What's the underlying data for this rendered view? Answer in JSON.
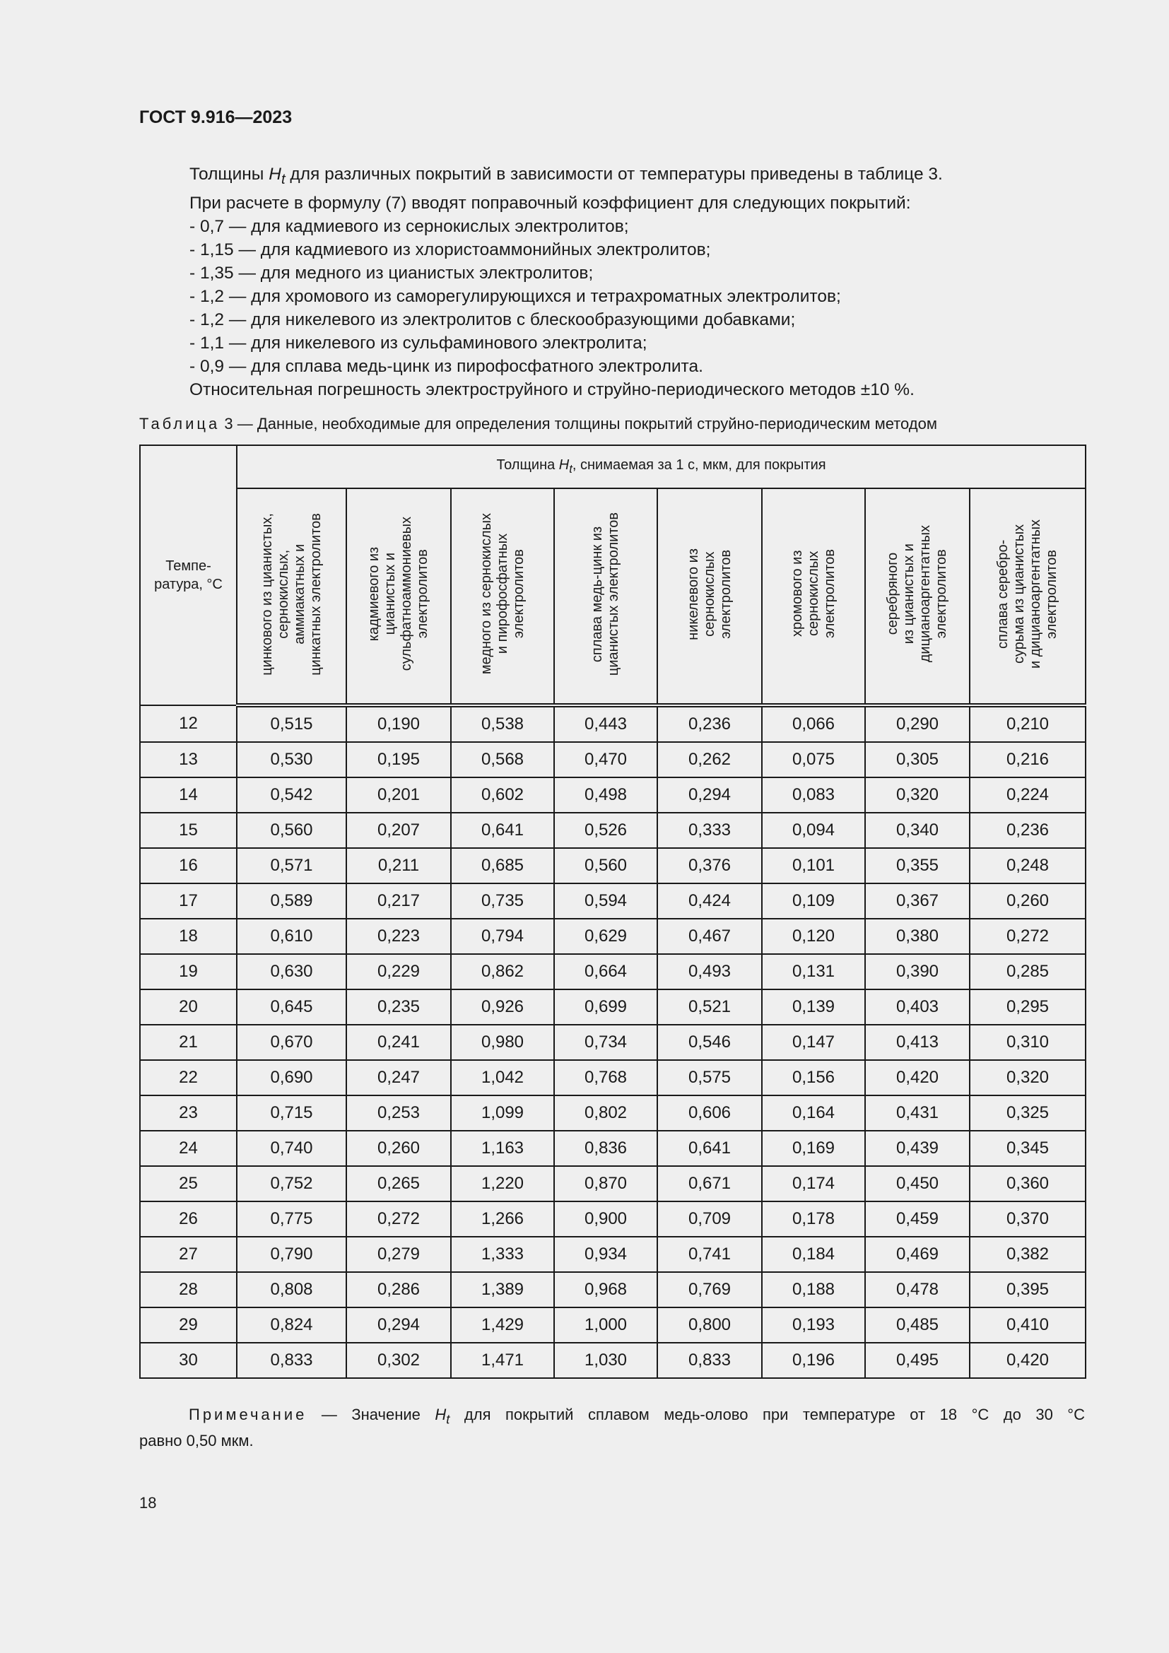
{
  "header": {
    "doc_code": "ГОСТ 9.916—2023"
  },
  "body": {
    "line1_pre": "Толщины ",
    "line1_H": "H",
    "line1_t": "t",
    "line1_post": " для различных покрытий в зависимости от температуры приведены в таблице 3.",
    "lines": [
      "При расчете в формулу (7) вводят поправочный коэффициент для следующих покрытий:",
      "-  0,7 — для кадмиевого из сернокислых электролитов;",
      "-  1,15 — для кадмиевого из хлористоаммонийных электролитов;",
      "-  1,35 — для медного из цианистых электролитов;",
      "-  1,2 — для хромового из саморегулирующихся и тетрахроматных электролитов;",
      "-  1,2 — для никелевого из электролитов с блескообразующими добавками;",
      "-  1,1 — для никелевого из сульфаминового электролита;",
      "-  0,9 — для сплава медь-цинк из пирофосфатного электролита.",
      "Относительная погрешность электроструйного и струйно-периодического методов ±10 %."
    ]
  },
  "table": {
    "caption_label": "Таблица",
    "caption_text": " 3 — Данные, необходимые для определения толщины покрытий струйно-периодическим методом",
    "temp_header": "Темпе-\nратура, °C",
    "group_header_pre": "Толщина ",
    "group_header_H": "H",
    "group_header_t": "t",
    "group_header_post": ", снимаемая за 1 с, мкм, для покрытия",
    "columns": [
      "цинкового из цианистых,\nсернокислых,\nаммиакатных и\nцинкатных электролитов",
      "кадмиевого из\nцианистых и\nсульфатноаммониевых\nэлектролитов",
      "медного из сернокислых\nи пирофосфатных\nэлектролитов",
      "сплава медь-цинк из\nцианистых электролитов",
      "никелевого из\nсернокислых\nэлектролитов",
      "хромового из\nсернокислых\nэлектролитов",
      "серебряного\nиз цианистых и\nдицианоаргентатных\nэлектролитов",
      "сплава серебро-\nсурьма из цианистых\nи дицианоаргентатных\nэлектролитов"
    ],
    "rows": [
      [
        "12",
        "0,515",
        "0,190",
        "0,538",
        "0,443",
        "0,236",
        "0,066",
        "0,290",
        "0,210"
      ],
      [
        "13",
        "0,530",
        "0,195",
        "0,568",
        "0,470",
        "0,262",
        "0,075",
        "0,305",
        "0,216"
      ],
      [
        "14",
        "0,542",
        "0,201",
        "0,602",
        "0,498",
        "0,294",
        "0,083",
        "0,320",
        "0,224"
      ],
      [
        "15",
        "0,560",
        "0,207",
        "0,641",
        "0,526",
        "0,333",
        "0,094",
        "0,340",
        "0,236"
      ],
      [
        "16",
        "0,571",
        "0,211",
        "0,685",
        "0,560",
        "0,376",
        "0,101",
        "0,355",
        "0,248"
      ],
      [
        "17",
        "0,589",
        "0,217",
        "0,735",
        "0,594",
        "0,424",
        "0,109",
        "0,367",
        "0,260"
      ],
      [
        "18",
        "0,610",
        "0,223",
        "0,794",
        "0,629",
        "0,467",
        "0,120",
        "0,380",
        "0,272"
      ],
      [
        "19",
        "0,630",
        "0,229",
        "0,862",
        "0,664",
        "0,493",
        "0,131",
        "0,390",
        "0,285"
      ],
      [
        "20",
        "0,645",
        "0,235",
        "0,926",
        "0,699",
        "0,521",
        "0,139",
        "0,403",
        "0,295"
      ],
      [
        "21",
        "0,670",
        "0,241",
        "0,980",
        "0,734",
        "0,546",
        "0,147",
        "0,413",
        "0,310"
      ],
      [
        "22",
        "0,690",
        "0,247",
        "1,042",
        "0,768",
        "0,575",
        "0,156",
        "0,420",
        "0,320"
      ],
      [
        "23",
        "0,715",
        "0,253",
        "1,099",
        "0,802",
        "0,606",
        "0,164",
        "0,431",
        "0,325"
      ],
      [
        "24",
        "0,740",
        "0,260",
        "1,163",
        "0,836",
        "0,641",
        "0,169",
        "0,439",
        "0,345"
      ],
      [
        "25",
        "0,752",
        "0,265",
        "1,220",
        "0,870",
        "0,671",
        "0,174",
        "0,450",
        "0,360"
      ],
      [
        "26",
        "0,775",
        "0,272",
        "1,266",
        "0,900",
        "0,709",
        "0,178",
        "0,459",
        "0,370"
      ],
      [
        "27",
        "0,790",
        "0,279",
        "1,333",
        "0,934",
        "0,741",
        "0,184",
        "0,469",
        "0,382"
      ],
      [
        "28",
        "0,808",
        "0,286",
        "1,389",
        "0,968",
        "0,769",
        "0,188",
        "0,478",
        "0,395"
      ],
      [
        "29",
        "0,824",
        "0,294",
        "1,429",
        "1,000",
        "0,800",
        "0,193",
        "0,485",
        "0,410"
      ],
      [
        "30",
        "0,833",
        "0,302",
        "1,471",
        "1,030",
        "0,833",
        "0,196",
        "0,495",
        "0,420"
      ]
    ]
  },
  "note": {
    "label": "Примечание",
    "pre": " — Значение ",
    "H": "H",
    "t": "t",
    "post": " для покрытий сплавом медь-олово при температуре от 18 °C до 30 °C",
    "line2": "равно  0,50 мкм."
  },
  "footer": {
    "page_number": "18"
  }
}
